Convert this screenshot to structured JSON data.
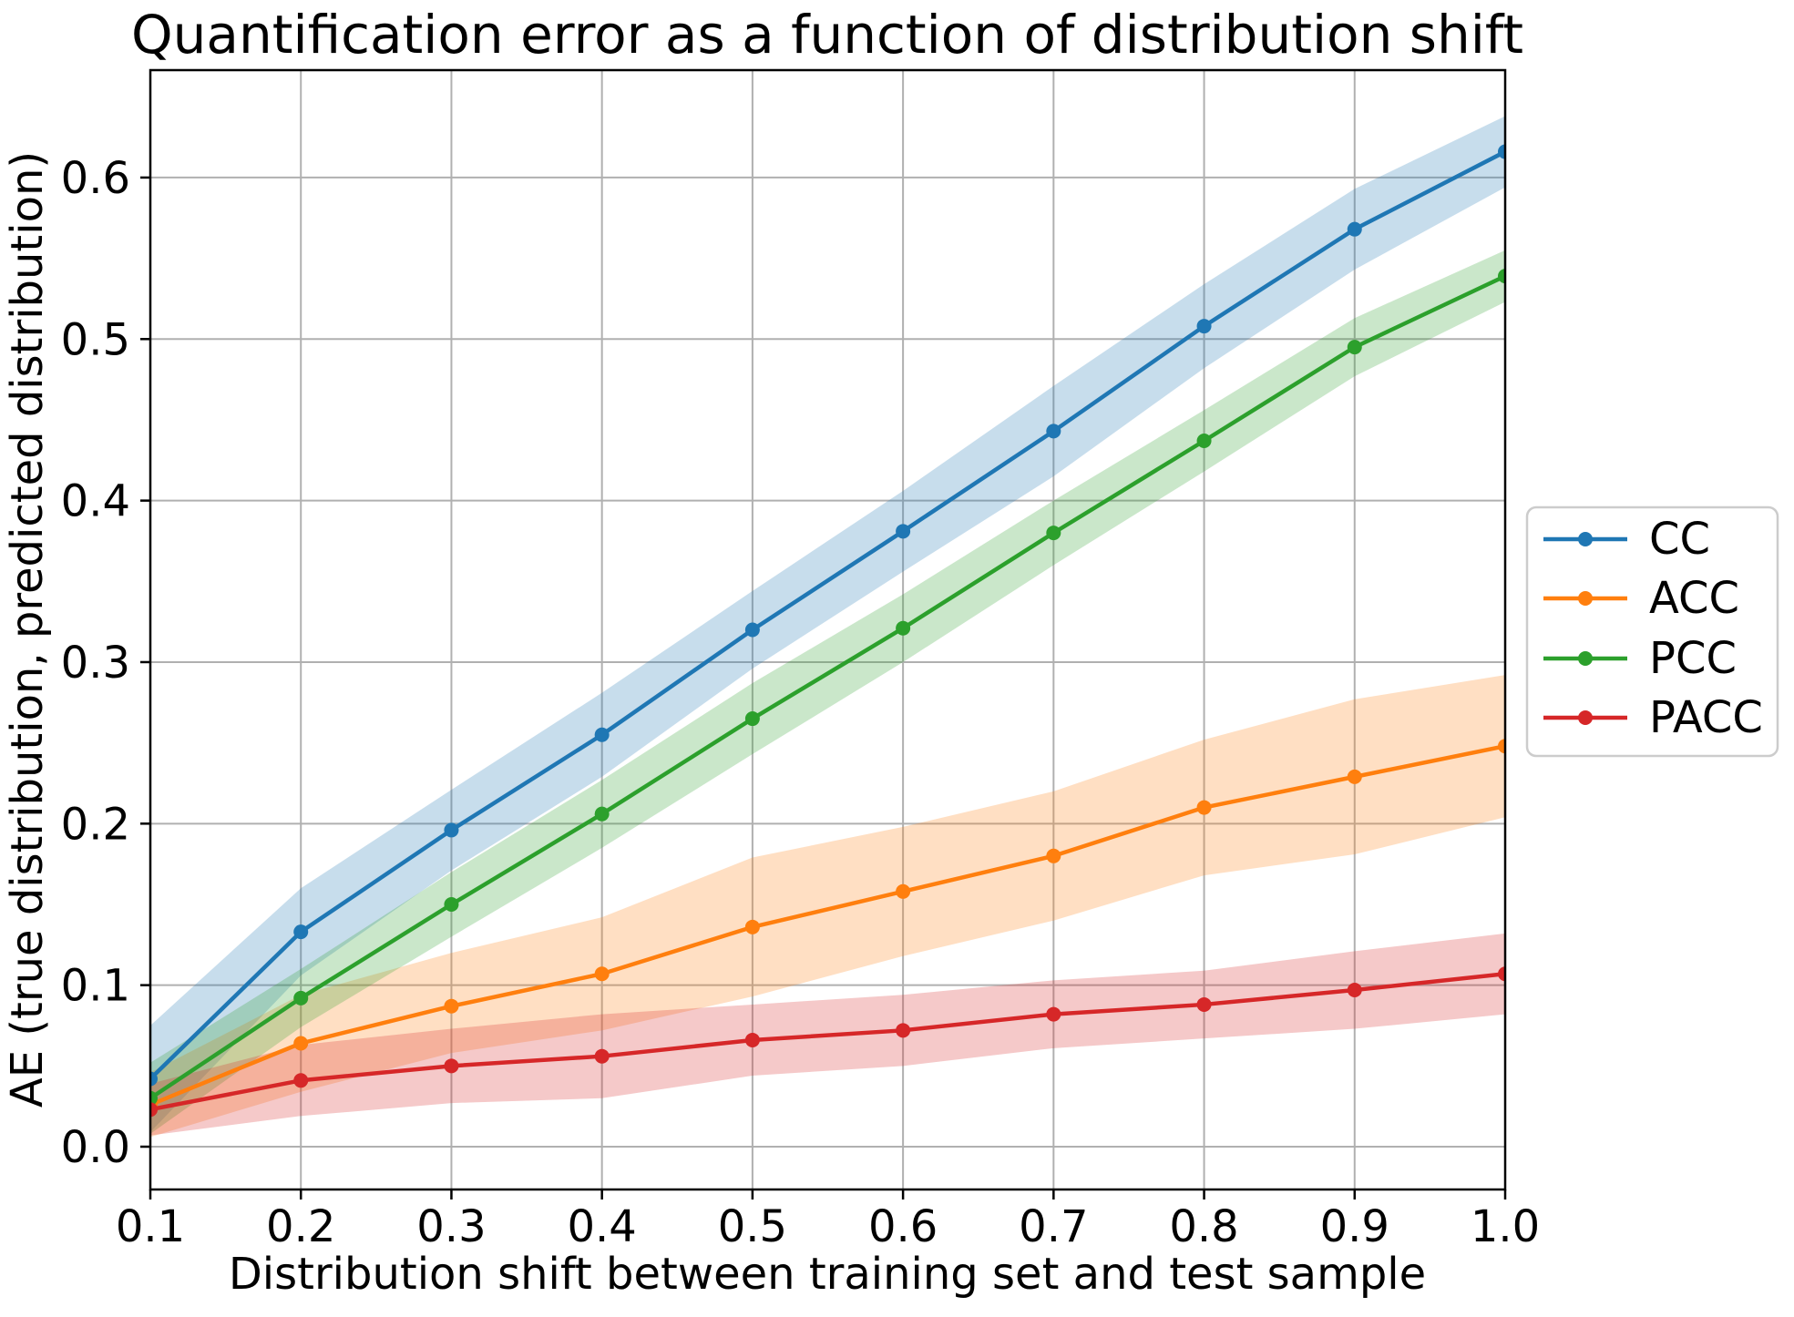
{
  "figure": {
    "background": "#ffffff"
  },
  "chart_data": {
    "type": "line",
    "title": "Quantification error as a function of distribution shift",
    "xlabel": "Distribution shift between training set and test sample",
    "ylabel": "AE (true distribution, predicted distribution)",
    "x": [
      0.1,
      0.2,
      0.3,
      0.4,
      0.5,
      0.6,
      0.7,
      0.8,
      0.9,
      1.0
    ],
    "xlim": [
      0.1,
      1.0
    ],
    "ylim": [
      -0.0265,
      0.6665
    ],
    "x_tick_values": [
      0.1,
      0.2,
      0.3,
      0.4,
      0.5,
      0.6,
      0.7,
      0.8,
      0.9,
      1.0
    ],
    "x_tick_labels": [
      "0.1",
      "0.2",
      "0.3",
      "0.4",
      "0.5",
      "0.6",
      "0.7",
      "0.8",
      "0.9",
      "1.0"
    ],
    "y_tick_values": [
      0.0,
      0.1,
      0.2,
      0.3,
      0.4,
      0.5,
      0.6
    ],
    "y_tick_labels": [
      "0.0",
      "0.1",
      "0.2",
      "0.3",
      "0.4",
      "0.5",
      "0.6"
    ],
    "grid": true,
    "grid_color": "#b0b0b0",
    "spine_color": "#000000",
    "band_opacity": 0.25,
    "marker": "circle",
    "legend_position": "right-outside",
    "series": [
      {
        "name": "CC",
        "color": "#1f77b4",
        "values": [
          0.042,
          0.133,
          0.196,
          0.255,
          0.32,
          0.381,
          0.443,
          0.508,
          0.568,
          0.616
        ],
        "band_lower": [
          0.009,
          0.106,
          0.171,
          0.229,
          0.296,
          0.356,
          0.415,
          0.482,
          0.543,
          0.594
        ],
        "band_upper": [
          0.075,
          0.16,
          0.221,
          0.281,
          0.344,
          0.406,
          0.471,
          0.534,
          0.593,
          0.638
        ]
      },
      {
        "name": "ACC",
        "color": "#ff7f0e",
        "values": [
          0.026,
          0.064,
          0.087,
          0.107,
          0.136,
          0.158,
          0.18,
          0.21,
          0.229,
          0.248
        ],
        "band_lower": [
          0.006,
          0.034,
          0.058,
          0.072,
          0.093,
          0.118,
          0.14,
          0.168,
          0.181,
          0.204
        ],
        "band_upper": [
          0.046,
          0.094,
          0.12,
          0.142,
          0.179,
          0.198,
          0.22,
          0.252,
          0.277,
          0.292
        ]
      },
      {
        "name": "PCC",
        "color": "#2ca02c",
        "values": [
          0.03,
          0.092,
          0.15,
          0.206,
          0.265,
          0.321,
          0.38,
          0.437,
          0.495,
          0.539
        ],
        "band_lower": [
          0.008,
          0.074,
          0.13,
          0.185,
          0.243,
          0.3,
          0.36,
          0.418,
          0.477,
          0.523
        ],
        "band_upper": [
          0.052,
          0.11,
          0.17,
          0.227,
          0.287,
          0.342,
          0.4,
          0.456,
          0.513,
          0.555
        ]
      },
      {
        "name": "PACC",
        "color": "#d62728",
        "values": [
          0.023,
          0.041,
          0.05,
          0.056,
          0.066,
          0.072,
          0.082,
          0.088,
          0.097,
          0.107
        ],
        "band_lower": [
          0.007,
          0.019,
          0.027,
          0.03,
          0.044,
          0.05,
          0.061,
          0.067,
          0.073,
          0.082
        ],
        "band_upper": [
          0.039,
          0.063,
          0.073,
          0.082,
          0.088,
          0.094,
          0.103,
          0.109,
          0.121,
          0.132
        ]
      }
    ]
  }
}
